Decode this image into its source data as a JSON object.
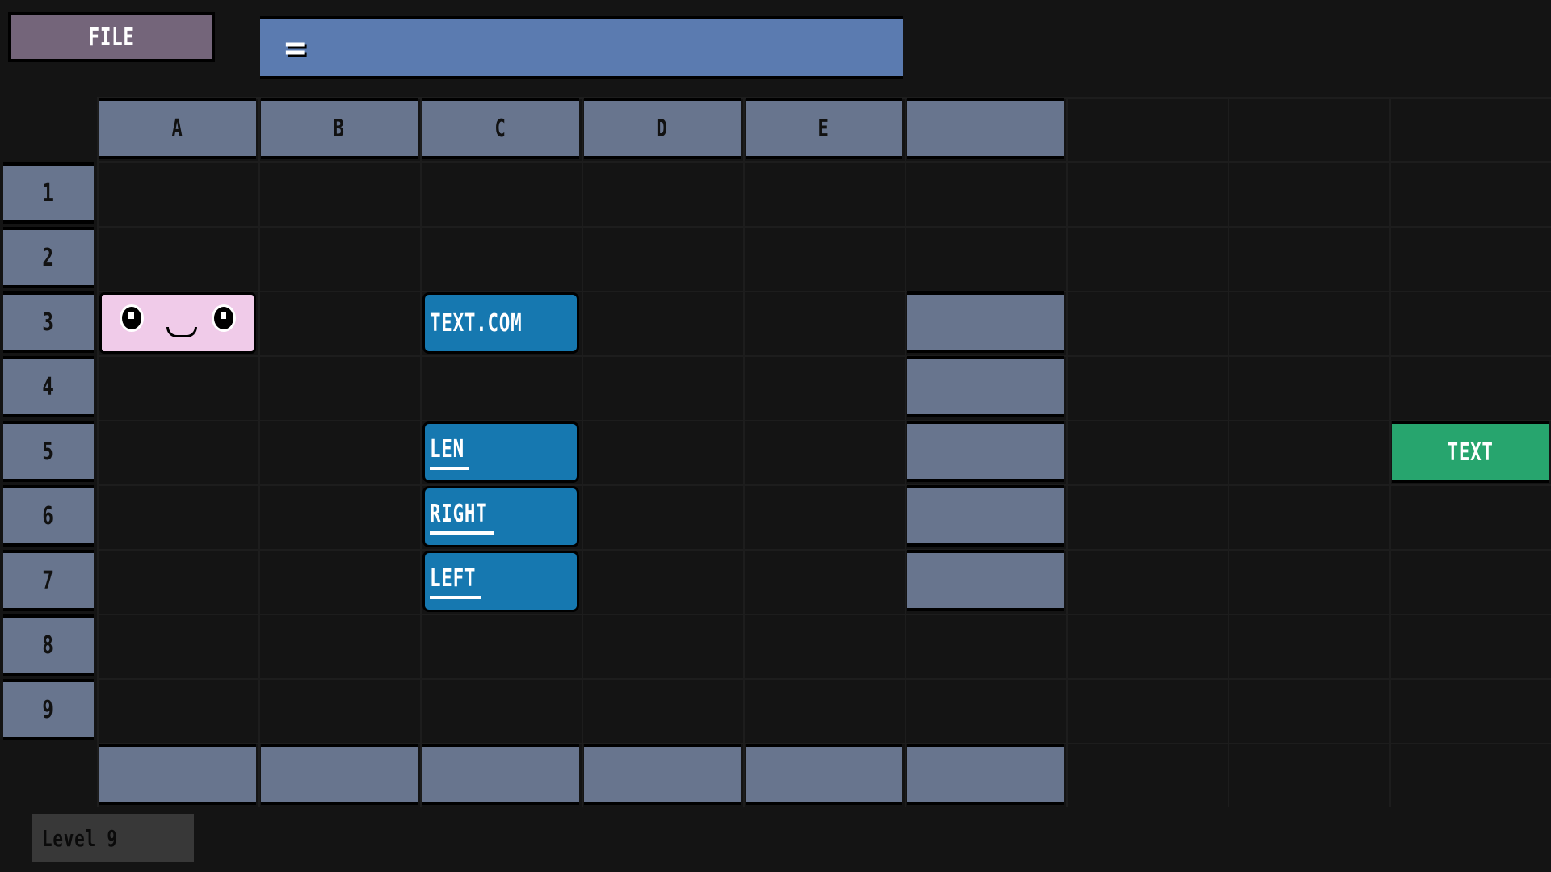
{
  "toolbar": {
    "file_label": "FILE",
    "formula_value": "="
  },
  "columns": [
    "A",
    "B",
    "C",
    "D",
    "E",
    ""
  ],
  "rows": [
    "1",
    "2",
    "3",
    "4",
    "5",
    "6",
    "7",
    "8",
    "9"
  ],
  "blocks": {
    "c3": {
      "label": "TEXT.COM"
    },
    "c5": {
      "label": "LEN"
    },
    "c6": {
      "label": "RIGHT"
    },
    "c7": {
      "label": "LEFT"
    },
    "green": {
      "label": "TEXT"
    },
    "a3": {
      "icon": "smiley-face-icon"
    }
  },
  "status": {
    "level": "Level 9"
  },
  "colors": {
    "file": "#74657a",
    "formula": "#5b7bb0",
    "header": "#68758e",
    "function": "#1678b0",
    "face": "#f0cbe9",
    "text": "#27a56e",
    "background": "#141414"
  }
}
